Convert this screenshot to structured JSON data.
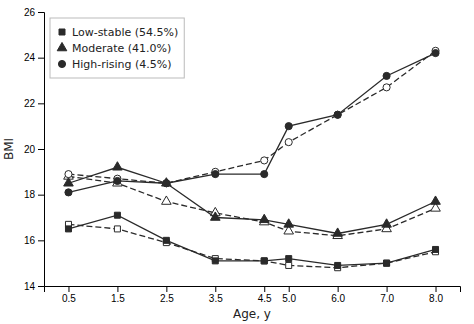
{
  "chart_data": {
    "type": "line",
    "xlabel": "Age, y",
    "ylabel": "BMI",
    "x": [
      0.5,
      1.5,
      2.5,
      3.5,
      4.5,
      5.0,
      6.0,
      7.0,
      8.0
    ],
    "series": [
      {
        "name": "Low-stable (54.5%)",
        "color": "#2a2a2a",
        "marker": "square",
        "line_style": "solid",
        "values": [
          16.5,
          17.1,
          16.0,
          15.1,
          15.1,
          15.2,
          14.9,
          15.0,
          15.6
        ]
      },
      {
        "color": "#2a2a2a",
        "marker": "square",
        "line_style": "dashed",
        "values": [
          16.7,
          16.5,
          15.9,
          15.2,
          15.1,
          14.9,
          14.8,
          15.0,
          15.5
        ]
      },
      {
        "name": "Moderate (41.0%)",
        "color": "#2a2a2a",
        "marker": "triangle",
        "line_style": "solid",
        "values": [
          18.5,
          19.2,
          18.5,
          17.0,
          16.9,
          16.7,
          16.3,
          16.7,
          17.7
        ]
      },
      {
        "color": "#2a2a2a",
        "marker": "triangle",
        "line_style": "dashed",
        "values": [
          18.8,
          18.5,
          17.7,
          17.2,
          16.8,
          16.4,
          16.2,
          16.5,
          17.4
        ]
      },
      {
        "name": "High-rising (4.5%)",
        "color": "#2a2a2a",
        "marker": "circle",
        "line_style": "solid",
        "values": [
          18.1,
          18.6,
          18.5,
          18.9,
          18.9,
          21.0,
          21.5,
          23.2,
          24.2
        ]
      },
      {
        "color": "#2a2a2a",
        "marker": "circle",
        "line_style": "dashed",
        "values": [
          18.9,
          18.7,
          18.5,
          19.0,
          19.5,
          20.3,
          21.5,
          22.7,
          24.3
        ]
      }
    ],
    "xlim": [
      0,
      8.5
    ],
    "xticks": [
      0.5,
      1.5,
      2.5,
      3.5,
      4.5,
      {
        "value": 5.0,
        "label": "5.0"
      },
      {
        "value": 6.0,
        "label": "6.0"
      },
      {
        "value": 7.0,
        "label": "7.0"
      },
      {
        "value": 8.0,
        "label": "8.0"
      }
    ],
    "ylim": [
      14,
      26
    ],
    "yticks": [
      14,
      16,
      18,
      20,
      22,
      24,
      26
    ],
    "grid": false,
    "legend": "upper-left"
  }
}
